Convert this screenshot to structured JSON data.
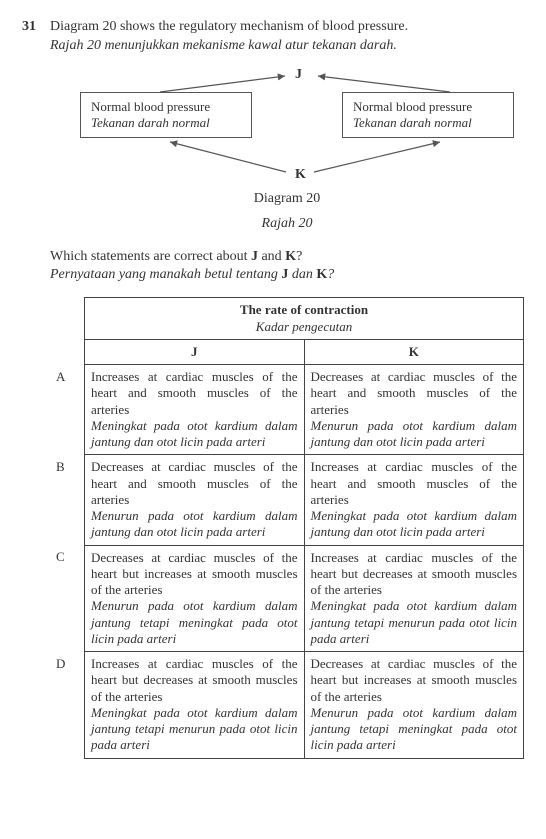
{
  "question": {
    "number": "31",
    "stem_en": "Diagram 20 shows the regulatory mechanism of blood pressure.",
    "stem_ms": "Rajah 20 menunjukkan mekanisme kawal atur tekanan darah."
  },
  "diagram": {
    "label_J": "J",
    "label_K": "K",
    "box_left_en": "Normal blood pressure",
    "box_left_ms": "Tekanan darah normal",
    "box_right_en": "Normal blood pressure",
    "box_right_ms": "Tekanan darah normal",
    "caption_en": "Diagram 20",
    "caption_ms": "Rajah 20",
    "box_border_color": "#555555",
    "arrow_color": "#555555"
  },
  "subprompt": {
    "en_pre": "Which statements are correct about ",
    "en_J": "J",
    "en_mid": " and ",
    "en_K": "K",
    "en_post": "?",
    "ms_pre": "Pernyataan yang manakah betul tentang ",
    "ms_J": "J",
    "ms_mid": " dan ",
    "ms_K": "K",
    "ms_post": "?"
  },
  "table": {
    "header_en": "The rate of contraction",
    "header_ms": "Kadar pengecutan",
    "col_J": "J",
    "col_K": "K",
    "rows": [
      {
        "letter": "A",
        "J_en": "Increases at cardiac muscles of the heart and smooth muscles of the arteries",
        "J_ms": "Meningkat pada otot kardium dalam jantung dan otot licin pada arteri",
        "K_en": "Decreases at cardiac muscles of the heart and smooth muscles of the arteries",
        "K_ms": "Menurun pada otot kardium dalam jantung dan otot licin pada arteri"
      },
      {
        "letter": "B",
        "J_en": "Decreases at cardiac muscles of the heart and smooth muscles of the arteries",
        "J_ms": "Menurun pada otot kardium dalam jantung dan otot licin pada arteri",
        "K_en": "Increases at cardiac muscles of the heart and smooth muscles of the arteries",
        "K_ms": "Meningkat pada otot kardium dalam jantung dan otot licin pada arteri"
      },
      {
        "letter": "C",
        "J_en": "Decreases at cardiac muscles of the heart but increases at smooth muscles of the arteries",
        "J_ms": "Menurun pada otot kardium dalam jantung tetapi meningkat pada otot licin pada arteri",
        "K_en": "Increases at cardiac muscles of the heart but decreases at smooth muscles of the arteries",
        "K_ms": "Meningkat pada otot kardium dalam jantung tetapi menurun pada otot licin pada arteri"
      },
      {
        "letter": "D",
        "J_en": "Increases at cardiac muscles of the heart but decreases at smooth muscles of the arteries",
        "J_ms": "Meningkat pada otot kardium dalam jantung tetapi menurun pada otot licin pada arteri",
        "K_en": "Decreases at cardiac muscles of the heart but increases at smooth muscles of the arteries",
        "K_ms": "Menurun pada otot kardium dalam jantung tetapi meningkat pada otot licin pada arteri"
      }
    ]
  }
}
